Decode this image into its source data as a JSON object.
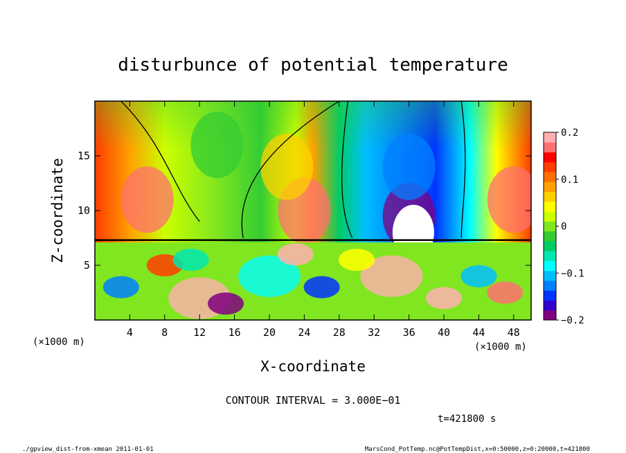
{
  "chart_data": {
    "type": "heatmap",
    "title": "disturbunce of potential temperature",
    "xlabel": "X-coordinate",
    "ylabel": "Z-coordinate",
    "x_unit_left": "(×1000 m)",
    "x_unit_right": "(×1000 m)",
    "xlim": [
      0,
      50
    ],
    "ylim": [
      0,
      20
    ],
    "xticks": [
      4,
      8,
      12,
      16,
      20,
      24,
      28,
      32,
      36,
      40,
      44,
      48
    ],
    "yticks": [
      5,
      10,
      15
    ],
    "colorbar": {
      "min": -0.2,
      "max": 0.2,
      "ticks": [
        "0.2",
        "0.1",
        "0",
        "−0.1",
        "−0.2"
      ],
      "tick_values": [
        0.2,
        0.1,
        0,
        -0.1,
        -0.2
      ],
      "colors": [
        "#800080",
        "#3300cc",
        "#0033ff",
        "#0080ff",
        "#00bfff",
        "#00ffff",
        "#00e6b3",
        "#00cc66",
        "#33cc33",
        "#80e620",
        "#ccff00",
        "#ffff00",
        "#ffd000",
        "#ffa000",
        "#ff7000",
        "#ff3c00",
        "#ff0000",
        "#ff7070",
        "#ffb0b0"
      ]
    },
    "contour_interval": "CONTOUR INTERVAL = 3.000E−01",
    "time": "t=421800 s",
    "features": [
      {
        "x": 36,
        "z": 9.5,
        "value": -0.2
      },
      {
        "x": 36,
        "z": 14,
        "value": -0.12
      },
      {
        "x": 6,
        "z": 11,
        "value": 0.16
      },
      {
        "x": 48,
        "z": 11,
        "value": 0.16
      },
      {
        "x": 24,
        "z": 10,
        "value": 0.16
      },
      {
        "x": 22,
        "z": 14,
        "value": 0.07
      },
      {
        "x": 14,
        "z": 16,
        "value": -0.02
      },
      {
        "x": 20,
        "z": 4,
        "value": -0.08
      },
      {
        "x": 34,
        "z": 4,
        "value": 0.2
      },
      {
        "x": 12,
        "z": 2,
        "value": 0.2
      }
    ]
  },
  "footer": {
    "left": "./gpview_dist-from-xmean  2011-01-01",
    "right": "MarsCond_PotTemp.nc@PotTempDist,x=0:50000,z=0:20000,t=421800"
  }
}
